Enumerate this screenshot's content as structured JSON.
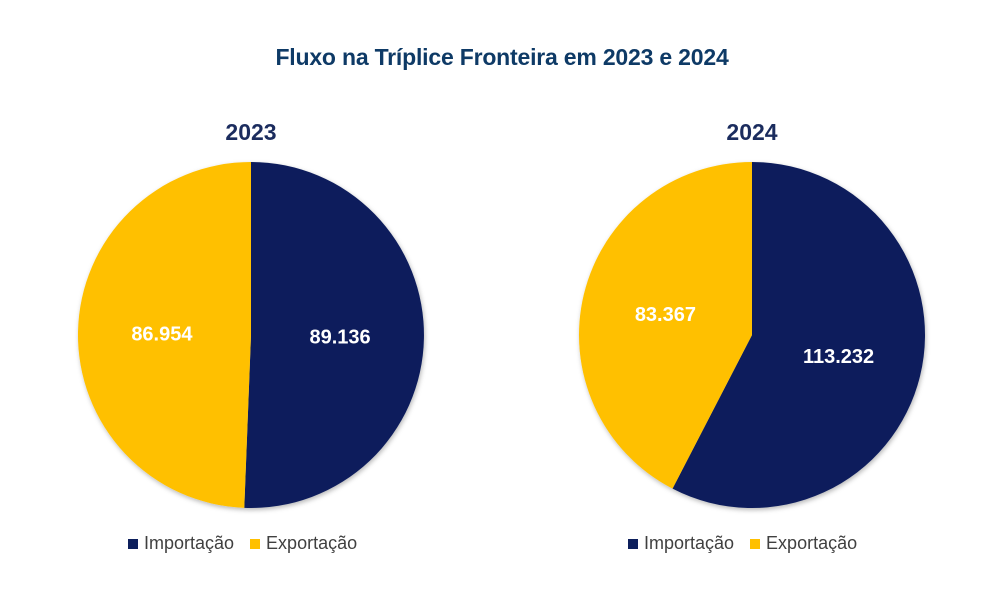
{
  "chart_title": "Fluxo na Tríplice Fronteira em 2023 e 2024",
  "colors": {
    "importacao": "#0d1f5c",
    "exportacao": "#ffc000",
    "title": "#0e3a66",
    "pie_title": "#1b2c5e"
  },
  "chart_data": [
    {
      "type": "pie",
      "title": "2023",
      "categories": [
        "Importação",
        "Exportação"
      ],
      "values": [
        89136,
        86954
      ],
      "data_labels": [
        "89.136",
        "86.954"
      ],
      "legend_position": "bottom"
    },
    {
      "type": "pie",
      "title": "2024",
      "categories": [
        "Importação",
        "Exportação"
      ],
      "values": [
        113232,
        83367
      ],
      "data_labels": [
        "113.232",
        "83.367"
      ],
      "legend_position": "bottom"
    }
  ]
}
